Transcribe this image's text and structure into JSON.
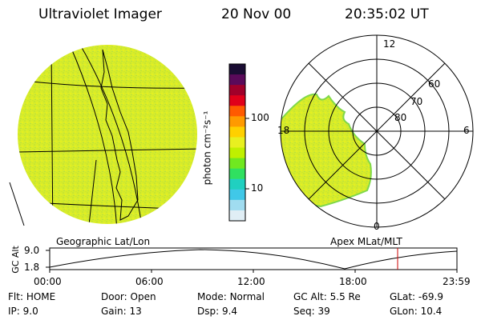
{
  "header": {
    "instrument": "Ultraviolet Imager",
    "date": "20 Nov 00",
    "time": "20:35:02 UT"
  },
  "left_panel": {
    "label": "Geographic Lat/Lon"
  },
  "right_panel": {
    "label": "Apex MLat/MLT",
    "lat_labels": [
      "60",
      "70",
      "80"
    ],
    "mlt_labels": [
      "12",
      "18",
      "6",
      "0"
    ]
  },
  "colorbar": {
    "unit_label": "photon cm⁻²s⁻¹",
    "ticks": [
      "100",
      "10"
    ],
    "colors": [
      "#1a0d33",
      "#5a0a5a",
      "#a0002a",
      "#e0001a",
      "#ff5a00",
      "#ff9a00",
      "#ffd000",
      "#e8f020",
      "#c0f000",
      "#70e820",
      "#30e060",
      "#20d0c0",
      "#40c8e8",
      "#a0dcf0",
      "#e0eef5"
    ]
  },
  "altitude_plot": {
    "y_label": "GC Alt",
    "y_ticks": [
      "9.0",
      "1.8"
    ],
    "x_ticks": [
      "00:00",
      "06:00",
      "12:00",
      "18:00",
      "23:59"
    ],
    "marker_color": "#cc0000"
  },
  "footer": {
    "row1": [
      {
        "label": "Flt:",
        "value": "HOME"
      },
      {
        "label": "Door:",
        "value": "Open"
      },
      {
        "label": "Mode:",
        "value": "Normal"
      },
      {
        "label": "GC Alt:",
        "value": "5.5 Re"
      },
      {
        "label": "GLat:",
        "value": "-69.9"
      }
    ],
    "row2": [
      {
        "label": "IP:",
        "value": "9.0"
      },
      {
        "label": "Gain:",
        "value": "13"
      },
      {
        "label": "Dsp:",
        "value": "9.4"
      },
      {
        "label": "Seq:",
        "value": "39"
      },
      {
        "label": "GLon:",
        "value": "10.4"
      }
    ]
  },
  "colors": {
    "image_fill": "#d8ec2a",
    "image_texture": "#bfe23a",
    "image_edge": "#7fd84a"
  }
}
